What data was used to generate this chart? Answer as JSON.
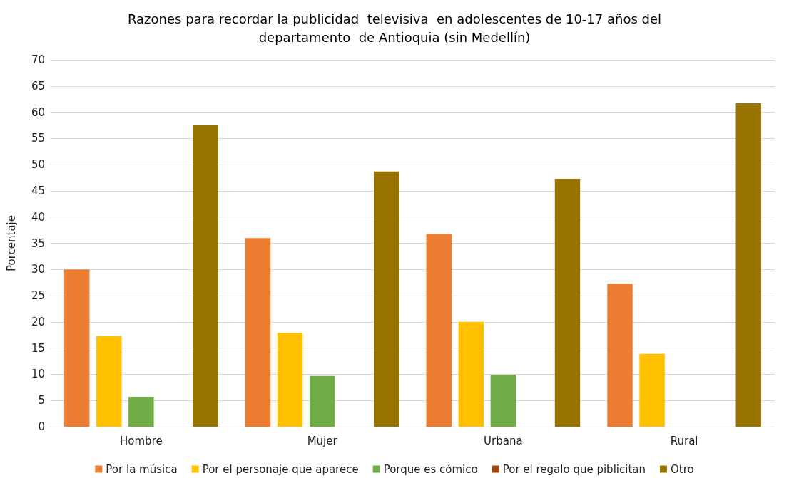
{
  "chart_data": {
    "type": "bar",
    "title": "Razones para recordar la publicidad  televisiva  en adolescentes de 10-17 años del\ndepartamento  de Antioquia (sin Medellín)",
    "ylabel": "Porcentaje",
    "categories": [
      "Hombre",
      "Mujer",
      "Urbana",
      "Rural"
    ],
    "series": [
      {
        "name": "Por la música",
        "color": "#ed7d31",
        "values": [
          30,
          36,
          36.8,
          27.3
        ]
      },
      {
        "name": "Por el personaje que aparece",
        "color": "#ffc000",
        "values": [
          17.3,
          17.9,
          20,
          13.9
        ]
      },
      {
        "name": "Porque es cómico",
        "color": "#70ad47",
        "values": [
          5.7,
          9.7,
          9.9,
          0
        ]
      },
      {
        "name": "Por el regalo que piblicitan",
        "color": "#9e480e",
        "values": [
          0,
          0,
          0,
          0
        ]
      },
      {
        "name": "Otro",
        "color": "#997300",
        "values": [
          57.5,
          48.7,
          47.3,
          61.7
        ]
      }
    ],
    "ylim": [
      0,
      70
    ],
    "yticks": [
      0,
      5,
      10,
      15,
      20,
      25,
      30,
      35,
      40,
      45,
      50,
      55,
      60,
      65,
      70
    ],
    "grid": "y",
    "legend": "bottom"
  }
}
